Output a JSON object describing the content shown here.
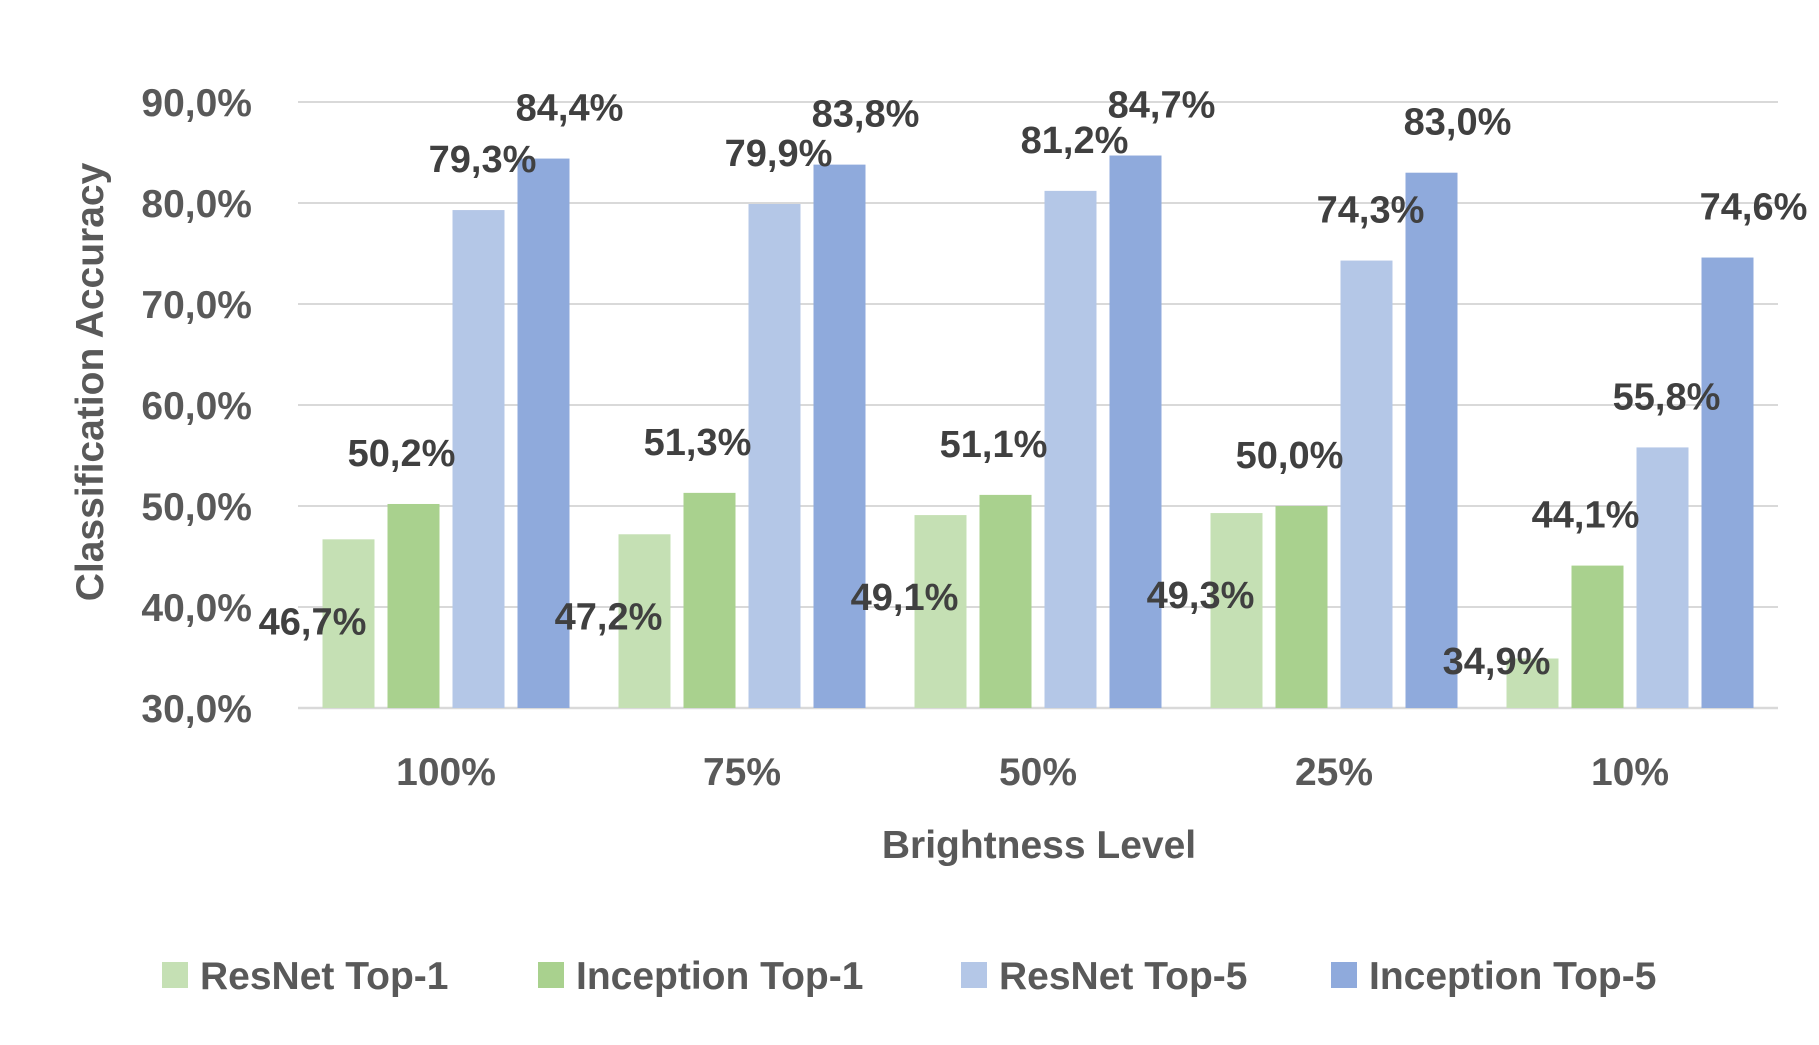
{
  "chart_data": {
    "type": "bar",
    "title": "",
    "xlabel": "Brightness Level",
    "ylabel": "Classification Accuracy",
    "categories": [
      "100%",
      "75%",
      "50%",
      "25%",
      "10%"
    ],
    "ylim": [
      30,
      90
    ],
    "yticks": [
      30,
      40,
      50,
      60,
      70,
      80,
      90
    ],
    "ytick_labels": [
      "30,0%",
      "40,0%",
      "50,0%",
      "60,0%",
      "70,0%",
      "80,0%",
      "90,0%"
    ],
    "grid": true,
    "legend_position": "bottom",
    "series": [
      {
        "name": "ResNet Top-1",
        "color": "#C5E0B4",
        "values": [
          46.7,
          47.2,
          49.1,
          49.3,
          34.9
        ],
        "labels": [
          "46,7%",
          "47,2%",
          "49,1%",
          "49,3%",
          "34,9%"
        ]
      },
      {
        "name": "Inception Top-1",
        "color": "#A9D18E",
        "values": [
          50.2,
          51.3,
          51.1,
          50.0,
          44.1
        ],
        "labels": [
          "50,2%",
          "51,3%",
          "51,1%",
          "50,0%",
          "44,1%"
        ]
      },
      {
        "name": "ResNet Top-5",
        "color": "#B4C7E7",
        "values": [
          79.3,
          79.9,
          81.2,
          74.3,
          55.8
        ],
        "labels": [
          "79,3%",
          "79,9%",
          "81,2%",
          "74,3%",
          "55,8%"
        ]
      },
      {
        "name": "Inception Top-5",
        "color": "#8FAADC",
        "values": [
          84.4,
          83.8,
          84.7,
          83.0,
          74.6
        ],
        "labels": [
          "84,4%",
          "83,8%",
          "84,7%",
          "83,0%",
          "74,6%"
        ]
      }
    ]
  },
  "colors": {
    "text": "#404040",
    "grid": "#D9D9D9"
  }
}
